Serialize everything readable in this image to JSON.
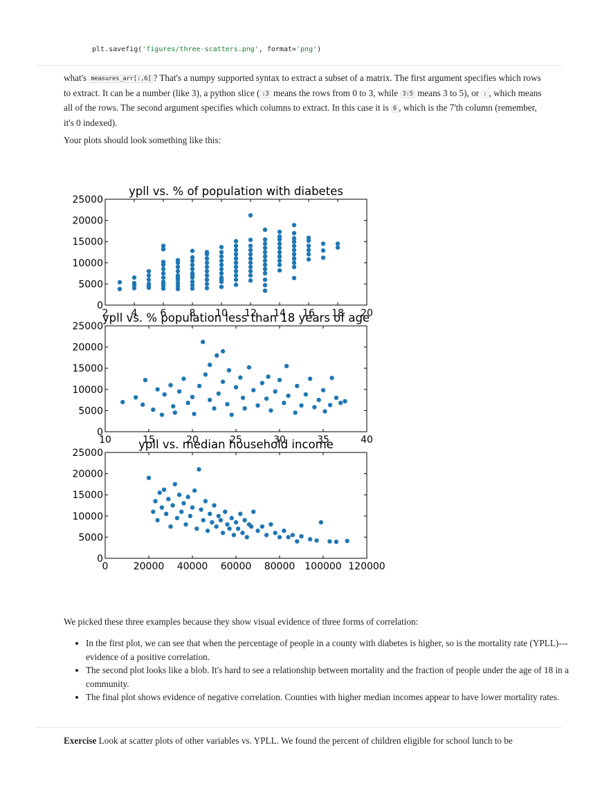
{
  "code": {
    "prefix": "plt.savefig(",
    "arg1": "'figures/three-scatters.png'",
    "mid": ", format=",
    "arg2": "'png'",
    "suffix": ")"
  },
  "para1": {
    "t1": "what's ",
    "c1": "measures_arr[:,6]",
    "t2": "? That's a numpy supported syntax to extract a subset of a matrix. The first argument specifies which rows to extract. It can be a number (like 3), a python slice (",
    "c2": ":3",
    "t3": " means the rows from 0 to 3, while ",
    "c3": "3:5",
    "t4": " means 3 to 5), or ",
    "c4": ":",
    "t5": ", which means all of the rows. The second argument specifies which columns to extract. In this case it is ",
    "c5": "6",
    "t6": ", which is the 7'th column (remember, it's 0 indexed)."
  },
  "para2": "Your plots should look something like this:",
  "chart_data": [
    {
      "type": "scatter",
      "title": "ypll vs. % of population with diabetes",
      "xlim": [
        2,
        20
      ],
      "ylim": [
        0,
        25000
      ],
      "xticks": [
        "2",
        "4",
        "6",
        "8",
        "10",
        "12",
        "14",
        "16",
        "18",
        "20"
      ],
      "yticks": [
        "0",
        "5000",
        "10000",
        "15000",
        "20000",
        "25000"
      ],
      "point_color": "#1f77b4",
      "points": [
        [
          3,
          3800
        ],
        [
          3,
          5400
        ],
        [
          4,
          4000
        ],
        [
          4,
          5200
        ],
        [
          4,
          6500
        ],
        [
          4,
          4700
        ],
        [
          5,
          4100
        ],
        [
          5,
          5000
        ],
        [
          5,
          6000
        ],
        [
          5,
          7000
        ],
        [
          5,
          8000
        ],
        [
          5,
          4500
        ],
        [
          6,
          3900
        ],
        [
          6,
          4600
        ],
        [
          6,
          5500
        ],
        [
          6,
          6500
        ],
        [
          6,
          7500
        ],
        [
          6,
          8500
        ],
        [
          6,
          9500
        ],
        [
          6,
          10200
        ],
        [
          6,
          13200
        ],
        [
          6,
          14000
        ],
        [
          6,
          5100
        ],
        [
          7,
          3800
        ],
        [
          7,
          4500
        ],
        [
          7,
          5200
        ],
        [
          7,
          6000
        ],
        [
          7,
          7000
        ],
        [
          7,
          8000
        ],
        [
          7,
          9000
        ],
        [
          7,
          10000
        ],
        [
          7,
          10600
        ],
        [
          7,
          6500
        ],
        [
          8,
          3900
        ],
        [
          8,
          4700
        ],
        [
          8,
          5500
        ],
        [
          8,
          6500
        ],
        [
          8,
          7500
        ],
        [
          8,
          8500
        ],
        [
          8,
          9500
        ],
        [
          8,
          10500
        ],
        [
          8,
          11300
        ],
        [
          8,
          12800
        ],
        [
          8,
          7000
        ],
        [
          9,
          4000
        ],
        [
          9,
          5000
        ],
        [
          9,
          6000
        ],
        [
          9,
          7000
        ],
        [
          9,
          8000
        ],
        [
          9,
          9000
        ],
        [
          9,
          10000
        ],
        [
          9,
          11000
        ],
        [
          9,
          12000
        ],
        [
          9,
          12500
        ],
        [
          10,
          4300
        ],
        [
          10,
          5500
        ],
        [
          10,
          6500
        ],
        [
          10,
          7500
        ],
        [
          10,
          8500
        ],
        [
          10,
          9500
        ],
        [
          10,
          10500
        ],
        [
          10,
          11500
        ],
        [
          10,
          12500
        ],
        [
          10,
          13700
        ],
        [
          10,
          6000
        ],
        [
          11,
          4800
        ],
        [
          11,
          6000
        ],
        [
          11,
          7000
        ],
        [
          11,
          8000
        ],
        [
          11,
          9000
        ],
        [
          11,
          10000
        ],
        [
          11,
          11000
        ],
        [
          11,
          12000
        ],
        [
          11,
          13000
        ],
        [
          11,
          14000
        ],
        [
          11,
          15100
        ],
        [
          12,
          5800
        ],
        [
          12,
          7000
        ],
        [
          12,
          8000
        ],
        [
          12,
          9000
        ],
        [
          12,
          10000
        ],
        [
          12,
          11000
        ],
        [
          12,
          12000
        ],
        [
          12,
          13000
        ],
        [
          12,
          14000
        ],
        [
          12,
          15400
        ],
        [
          12,
          21200
        ],
        [
          13,
          3400
        ],
        [
          13,
          4700
        ],
        [
          13,
          6000
        ],
        [
          13,
          7500
        ],
        [
          13,
          8500
        ],
        [
          13,
          9500
        ],
        [
          13,
          10500
        ],
        [
          13,
          11500
        ],
        [
          13,
          12500
        ],
        [
          13,
          13500
        ],
        [
          13,
          14500
        ],
        [
          13,
          15500
        ],
        [
          13,
          17800
        ],
        [
          14,
          8200
        ],
        [
          14,
          9500
        ],
        [
          14,
          10500
        ],
        [
          14,
          11500
        ],
        [
          14,
          12500
        ],
        [
          14,
          13500
        ],
        [
          14,
          14500
        ],
        [
          14,
          15500
        ],
        [
          14,
          16200
        ],
        [
          14,
          17300
        ],
        [
          15,
          6400
        ],
        [
          15,
          9000
        ],
        [
          15,
          10000
        ],
        [
          15,
          11000
        ],
        [
          15,
          12000
        ],
        [
          15,
          13000
        ],
        [
          15,
          14000
        ],
        [
          15,
          15000
        ],
        [
          15,
          15800
        ],
        [
          15,
          17000
        ],
        [
          15,
          18900
        ],
        [
          16,
          10800
        ],
        [
          16,
          12000
        ],
        [
          16,
          13000
        ],
        [
          16,
          14000
        ],
        [
          16,
          15200
        ],
        [
          16,
          15900
        ],
        [
          17,
          11200
        ],
        [
          17,
          12900
        ],
        [
          17,
          14500
        ],
        [
          18,
          13600
        ],
        [
          18,
          14500
        ]
      ]
    },
    {
      "type": "scatter",
      "title": "ypll vs. % population less than 18 years of age",
      "xlim": [
        10,
        40
      ],
      "ylim": [
        0,
        25000
      ],
      "xticks": [
        "10",
        "15",
        "20",
        "25",
        "30",
        "35",
        "40"
      ],
      "yticks": [
        "0",
        "5000",
        "10000",
        "15000",
        "20000",
        "25000"
      ],
      "point_color": "#1f77b4",
      "points": [
        [
          12,
          7000
        ],
        [
          13.5,
          8100
        ],
        [
          14.3,
          6400
        ],
        [
          14.6,
          12200
        ],
        [
          15.5,
          5200
        ],
        [
          16,
          10000
        ],
        [
          16.5,
          4000
        ],
        [
          16.8,
          8800
        ],
        [
          17.5,
          11000
        ],
        [
          17.8,
          6000
        ],
        [
          18,
          4500
        ],
        [
          18.5,
          9500
        ],
        [
          19,
          12500
        ],
        [
          19.5,
          6800
        ],
        [
          20,
          8200
        ],
        [
          20.2,
          4200
        ],
        [
          20.8,
          10800
        ],
        [
          21.2,
          21200
        ],
        [
          21.5,
          13500
        ],
        [
          22,
          7500
        ],
        [
          22,
          15800
        ],
        [
          22.5,
          5500
        ],
        [
          22.8,
          18000
        ],
        [
          23,
          9000
        ],
        [
          23.5,
          11800
        ],
        [
          23.5,
          19000
        ],
        [
          24,
          6500
        ],
        [
          24.2,
          14500
        ],
        [
          24.5,
          4000
        ],
        [
          25,
          10500
        ],
        [
          25.5,
          12800
        ],
        [
          25.8,
          8000
        ],
        [
          26,
          5500
        ],
        [
          26.5,
          15200
        ],
        [
          27,
          9800
        ],
        [
          27.5,
          6200
        ],
        [
          28,
          11500
        ],
        [
          28.5,
          7800
        ],
        [
          28.7,
          13000
        ],
        [
          29,
          5000
        ],
        [
          29.5,
          9500
        ],
        [
          30,
          12200
        ],
        [
          30.5,
          6800
        ],
        [
          30.8,
          15500
        ],
        [
          31,
          8500
        ],
        [
          31.8,
          4500
        ],
        [
          32,
          10800
        ],
        [
          32.5,
          6200
        ],
        [
          33,
          8800
        ],
        [
          33.5,
          12500
        ],
        [
          34,
          5800
        ],
        [
          34.5,
          7500
        ],
        [
          35,
          9800
        ],
        [
          35.2,
          4800
        ],
        [
          35.8,
          6300
        ],
        [
          36,
          12700
        ],
        [
          36.5,
          8000
        ],
        [
          37,
          6800
        ],
        [
          37.5,
          7200
        ]
      ]
    },
    {
      "type": "scatter",
      "title": "ypll vs. median household income",
      "xlim": [
        0,
        120000
      ],
      "ylim": [
        0,
        25000
      ],
      "xticks": [
        "0",
        "20000",
        "40000",
        "60000",
        "80000",
        "100000",
        "120000"
      ],
      "yticks": [
        "0",
        "5000",
        "10000",
        "15000",
        "20000",
        "25000"
      ],
      "point_color": "#1f77b4",
      "points": [
        [
          20000,
          19000
        ],
        [
          22000,
          11000
        ],
        [
          23000,
          13500
        ],
        [
          24000,
          9000
        ],
        [
          25000,
          15500
        ],
        [
          26000,
          12000
        ],
        [
          27000,
          16200
        ],
        [
          28000,
          10500
        ],
        [
          29000,
          14000
        ],
        [
          30000,
          7500
        ],
        [
          31000,
          12500
        ],
        [
          32000,
          17500
        ],
        [
          33000,
          9500
        ],
        [
          34000,
          15000
        ],
        [
          35000,
          11000
        ],
        [
          36000,
          13000
        ],
        [
          37000,
          8000
        ],
        [
          38000,
          14500
        ],
        [
          39000,
          10000
        ],
        [
          40000,
          12000
        ],
        [
          41000,
          16000
        ],
        [
          42000,
          7000
        ],
        [
          43000,
          21000
        ],
        [
          44000,
          11500
        ],
        [
          45000,
          9000
        ],
        [
          46000,
          13500
        ],
        [
          47000,
          6500
        ],
        [
          48000,
          10500
        ],
        [
          49000,
          8500
        ],
        [
          50000,
          12500
        ],
        [
          51000,
          7500
        ],
        [
          52000,
          10000
        ],
        [
          53000,
          9000
        ],
        [
          54000,
          6000
        ],
        [
          55000,
          11000
        ],
        [
          56000,
          8000
        ],
        [
          57000,
          7000
        ],
        [
          58000,
          9500
        ],
        [
          59000,
          5500
        ],
        [
          60000,
          8500
        ],
        [
          61000,
          7000
        ],
        [
          62000,
          10500
        ],
        [
          63000,
          6000
        ],
        [
          64000,
          9000
        ],
        [
          65000,
          5000
        ],
        [
          66000,
          8000
        ],
        [
          67000,
          7500
        ],
        [
          68000,
          11000
        ],
        [
          70000,
          6500
        ],
        [
          72000,
          7500
        ],
        [
          74000,
          5500
        ],
        [
          76000,
          8000
        ],
        [
          78000,
          6000
        ],
        [
          80000,
          5000
        ],
        [
          82000,
          6500
        ],
        [
          84000,
          5000
        ],
        [
          86000,
          5500
        ],
        [
          88000,
          4000
        ],
        [
          90000,
          5200
        ],
        [
          94000,
          4500
        ],
        [
          97000,
          4200
        ],
        [
          99000,
          8500
        ],
        [
          103000,
          4000
        ],
        [
          106000,
          3900
        ],
        [
          111000,
          4100
        ]
      ]
    }
  ],
  "para3": "We picked these three examples because they show visual evidence of three forms of correlation:",
  "bullets": [
    "In the first plot, we can see that when the percentage of people in a county with diabetes is higher, so is the mortality rate (YPLL)---evidence of a positive correlation.",
    "The second plot looks like a blob. It's hard to see a relationship between mortality and the fraction of people under the age of 18 in a community.",
    "The final plot shows evidence of negative correlation. Counties with higher median incomes appear to have lower mortality rates."
  ],
  "exercise": {
    "label": "Exercise",
    "text": " Look at scatter plots of other variables vs. YPLL. We found the percent of children eligible for school lunch to be"
  }
}
